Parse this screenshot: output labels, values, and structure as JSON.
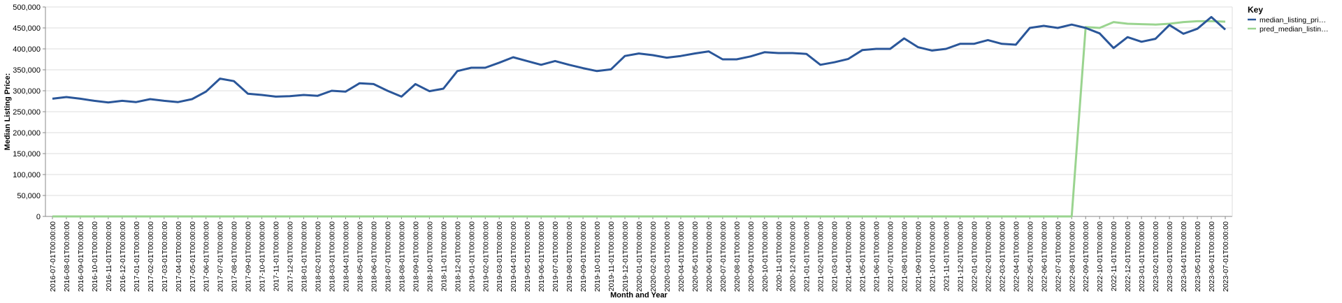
{
  "chart_data": {
    "type": "line",
    "x_label": "Month and Year",
    "y_label": "Median Listing Price:",
    "legend_title": "Key",
    "legend_position": "top-right",
    "grid": true,
    "ylim": [
      0,
      500000
    ],
    "yticks": [
      0,
      {
        "value": 50000,
        "label": "50,000"
      },
      {
        "value": 100000,
        "label": "100,000"
      },
      {
        "value": 150000,
        "label": "150,000"
      },
      {
        "value": 200000,
        "label": "200,000"
      },
      {
        "value": 250000,
        "label": "250,000"
      },
      {
        "value": 300000,
        "label": "300,000"
      },
      {
        "value": 350000,
        "label": "350,000"
      },
      {
        "value": 400000,
        "label": "400,000"
      },
      {
        "value": 450000,
        "label": "450,000"
      },
      {
        "value": 500000,
        "label": "500,000"
      }
    ],
    "categories": [
      "2016-07-01T00:00:00",
      "2016-08-01T00:00:00",
      "2016-09-01T00:00:00",
      "2016-10-01T00:00:00",
      "2016-11-01T00:00:00",
      "2016-12-01T00:00:00",
      "2017-01-01T00:00:00",
      "2017-02-01T00:00:00",
      "2017-03-01T00:00:00",
      "2017-04-01T00:00:00",
      "2017-05-01T00:00:00",
      "2017-06-01T00:00:00",
      "2017-07-01T00:00:00",
      "2017-08-01T00:00:00",
      "2017-09-01T00:00:00",
      "2017-10-01T00:00:00",
      "2017-11-01T00:00:00",
      "2017-12-01T00:00:00",
      "2018-01-01T00:00:00",
      "2018-02-01T00:00:00",
      "2018-03-01T00:00:00",
      "2018-04-01T00:00:00",
      "2018-05-01T00:00:00",
      "2018-06-01T00:00:00",
      "2018-07-01T00:00:00",
      "2018-08-01T00:00:00",
      "2018-09-01T00:00:00",
      "2018-10-01T00:00:00",
      "2018-11-01T00:00:00",
      "2018-12-01T00:00:00",
      "2019-01-01T00:00:00",
      "2019-02-01T00:00:00",
      "2019-03-01T00:00:00",
      "2019-04-01T00:00:00",
      "2019-05-01T00:00:00",
      "2019-06-01T00:00:00",
      "2019-07-01T00:00:00",
      "2019-08-01T00:00:00",
      "2019-09-01T00:00:00",
      "2019-10-01T00:00:00",
      "2019-11-01T00:00:00",
      "2019-12-01T00:00:00",
      "2020-01-01T00:00:00",
      "2020-02-01T00:00:00",
      "2020-03-01T00:00:00",
      "2020-04-01T00:00:00",
      "2020-05-01T00:00:00",
      "2020-06-01T00:00:00",
      "2020-07-01T00:00:00",
      "2020-08-01T00:00:00",
      "2020-09-01T00:00:00",
      "2020-10-01T00:00:00",
      "2020-11-01T00:00:00",
      "2020-12-01T00:00:00",
      "2021-01-01T00:00:00",
      "2021-02-01T00:00:00",
      "2021-03-01T00:00:00",
      "2021-04-01T00:00:00",
      "2021-05-01T00:00:00",
      "2021-06-01T00:00:00",
      "2021-07-01T00:00:00",
      "2021-08-01T00:00:00",
      "2021-09-01T00:00:00",
      "2021-10-01T00:00:00",
      "2021-11-01T00:00:00",
      "2021-12-01T00:00:00",
      "2022-01-01T00:00:00",
      "2022-02-01T00:00:00",
      "2022-03-01T00:00:00",
      "2022-04-01T00:00:00",
      "2022-05-01T00:00:00",
      "2022-06-01T00:00:00",
      "2022-07-01T00:00:00",
      "2022-08-01T00:00:00",
      "2022-09-01T00:00:00",
      "2022-10-01T00:00:00",
      "2022-11-01T00:00:00",
      "2022-12-01T00:00:00",
      "2023-01-01T00:00:00",
      "2023-02-01T00:00:00",
      "2023-03-01T00:00:00",
      "2023-04-01T00:00:00",
      "2023-05-01T00:00:00",
      "2023-06-01T00:00:00",
      "2023-07-01T00:00:00"
    ],
    "series": [
      {
        "name": "median_listing_pri…",
        "color": "#2a5699",
        "values": [
          281000,
          285000,
          281000,
          276000,
          272000,
          276000,
          273000,
          280000,
          276000,
          273000,
          280000,
          298000,
          329000,
          323000,
          293000,
          290000,
          286000,
          287000,
          290000,
          288000,
          300000,
          298000,
          318000,
          316000,
          300000,
          286000,
          316000,
          299000,
          305000,
          347000,
          355000,
          355000,
          367000,
          380000,
          371000,
          362000,
          371000,
          362000,
          354000,
          347000,
          351000,
          383000,
          389000,
          385000,
          379000,
          383000,
          389000,
          394000,
          375000,
          375000,
          382000,
          392000,
          390000,
          390000,
          388000,
          362000,
          368000,
          376000,
          397000,
          400000,
          400000,
          425000,
          404000,
          396000,
          400000,
          412000,
          412000,
          421000,
          412000,
          410000,
          450000,
          455000,
          450000,
          458000,
          450000,
          437000,
          402000,
          428000,
          417000,
          424000,
          457000,
          436000,
          448000,
          476000,
          446000
        ]
      },
      {
        "name": "pred_median_listin…",
        "color": "#9ad48f",
        "values": [
          0,
          0,
          0,
          0,
          0,
          0,
          0,
          0,
          0,
          0,
          0,
          0,
          0,
          0,
          0,
          0,
          0,
          0,
          0,
          0,
          0,
          0,
          0,
          0,
          0,
          0,
          0,
          0,
          0,
          0,
          0,
          0,
          0,
          0,
          0,
          0,
          0,
          0,
          0,
          0,
          0,
          0,
          0,
          0,
          0,
          0,
          0,
          0,
          0,
          0,
          0,
          0,
          0,
          0,
          0,
          0,
          0,
          0,
          0,
          0,
          0,
          0,
          0,
          0,
          0,
          0,
          0,
          0,
          0,
          0,
          0,
          0,
          0,
          0,
          452000,
          450000,
          464000,
          460000,
          459000,
          458000,
          460000,
          464000,
          466000,
          466000,
          465000
        ]
      }
    ]
  }
}
